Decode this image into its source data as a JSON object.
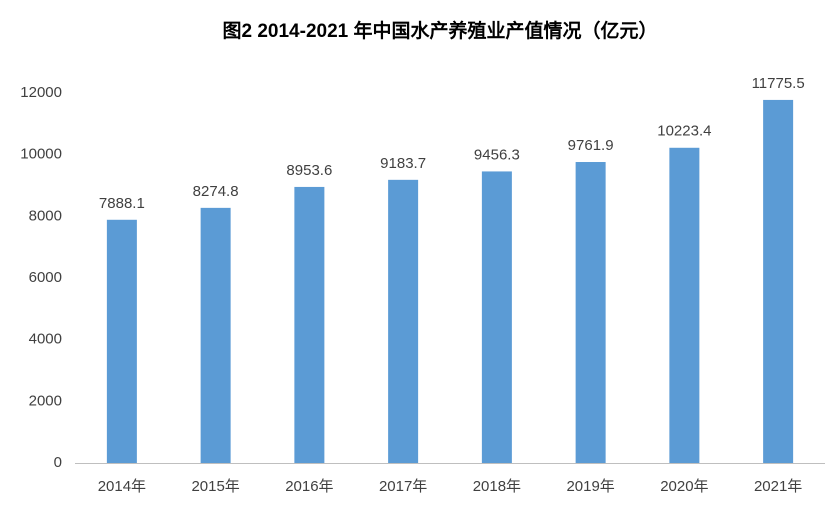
{
  "chart_data": {
    "type": "bar",
    "title": "图2 2014-2021 年中国水产养殖业产值情况（亿元）",
    "categories": [
      "2014年",
      "2015年",
      "2016年",
      "2017年",
      "2018年",
      "2019年",
      "2020年",
      "2021年"
    ],
    "values": [
      7888.1,
      8274.8,
      8953.6,
      9183.7,
      9456.3,
      9761.9,
      10223.4,
      11775.5
    ],
    "color": "#5b9bd5",
    "ylim": [
      0,
      12000
    ],
    "yticks": [
      0,
      2000,
      4000,
      6000,
      8000,
      10000,
      12000
    ],
    "grid": false
  }
}
